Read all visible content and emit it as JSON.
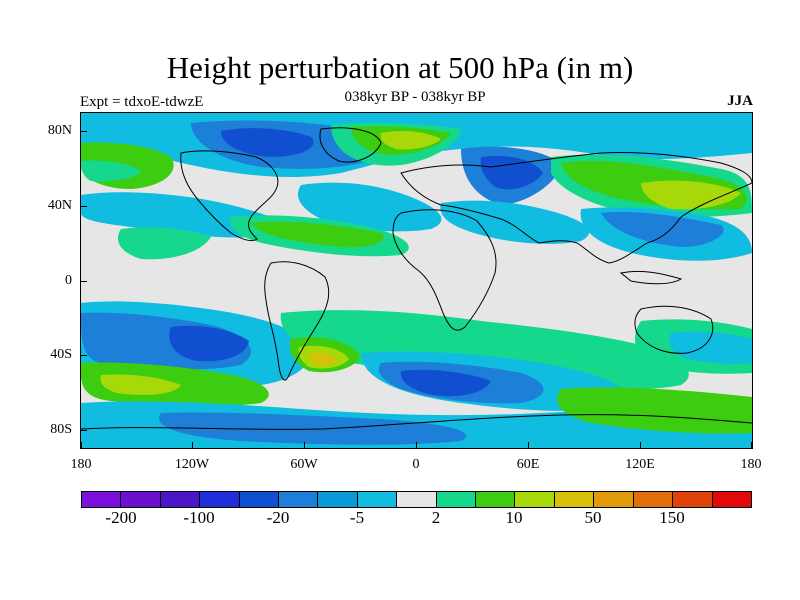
{
  "figure": {
    "title": "Height perturbation at 500 hPa (in m)",
    "subtitle": "038kyr BP - 038kyr BP",
    "left_label": "Expt = tdxoE-tdwzE",
    "right_label": "JJA"
  },
  "axes": {
    "x_ticks": [
      "180",
      "120W",
      "60W",
      "0",
      "60E",
      "120E",
      "180"
    ],
    "y_ticks": [
      "80N",
      "40N",
      "0",
      "40S",
      "80S"
    ]
  },
  "colorbar": {
    "colors": [
      "#7b10dd",
      "#6a10cf",
      "#4a16c8",
      "#2030d8",
      "#1050d0",
      "#1d7fd8",
      "#0a9ad8",
      "#10bde0",
      "#e6e6e6",
      "#15d88c",
      "#3ccc10",
      "#a6d80a",
      "#d6c00a",
      "#e09a0a",
      "#e0700a",
      "#e0420c",
      "#e00a0a"
    ],
    "labels": [
      "-200",
      "-100",
      "-20",
      "-5",
      "2",
      "10",
      "50",
      "150"
    ]
  }
}
